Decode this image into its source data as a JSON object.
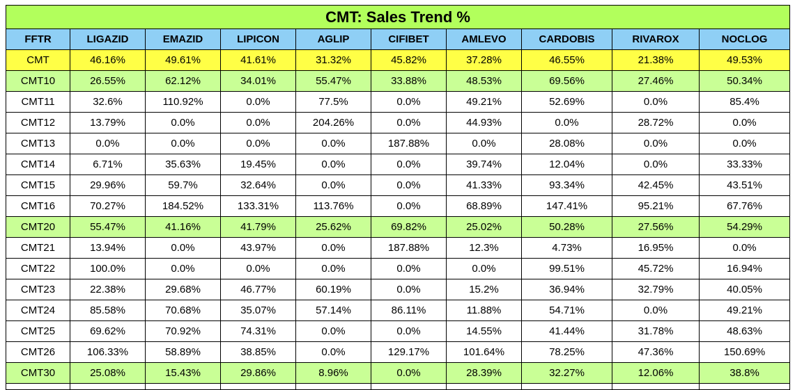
{
  "title": "CMT: Sales Trend %",
  "headers": [
    "FFTR",
    "LIGAZID",
    "EMAZID",
    "LIPICON",
    "AGLIP",
    "CIFIBET",
    "AMLEVO",
    "CARDOBIS",
    "RIVAROX",
    "NOCLOG"
  ],
  "colors": {
    "title_bg": "#b2ff5c",
    "header_bg": "#8fcff5",
    "highlight_yellow": "#ffff46",
    "highlight_green": "#c9ff96",
    "plain": "#ffffff"
  },
  "rows": [
    {
      "style": "yellow",
      "cells": [
        "CMT",
        "46.16%",
        "49.61%",
        "41.61%",
        "31.32%",
        "45.82%",
        "37.28%",
        "46.55%",
        "21.38%",
        "49.53%"
      ]
    },
    {
      "style": "green",
      "cells": [
        "CMT10",
        "26.55%",
        "62.12%",
        "34.01%",
        "55.47%",
        "33.88%",
        "48.53%",
        "69.56%",
        "27.46%",
        "50.34%"
      ]
    },
    {
      "style": "white",
      "cells": [
        "CMT11",
        "32.6%",
        "110.92%",
        "0.0%",
        "77.5%",
        "0.0%",
        "49.21%",
        "52.69%",
        "0.0%",
        "85.4%"
      ]
    },
    {
      "style": "white",
      "cells": [
        "CMT12",
        "13.79%",
        "0.0%",
        "0.0%",
        "204.26%",
        "0.0%",
        "44.93%",
        "0.0%",
        "28.72%",
        "0.0%"
      ]
    },
    {
      "style": "white",
      "cells": [
        "CMT13",
        "0.0%",
        "0.0%",
        "0.0%",
        "0.0%",
        "187.88%",
        "0.0%",
        "28.08%",
        "0.0%",
        "0.0%"
      ]
    },
    {
      "style": "white",
      "cells": [
        "CMT14",
        "6.71%",
        "35.63%",
        "19.45%",
        "0.0%",
        "0.0%",
        "39.74%",
        "12.04%",
        "0.0%",
        "33.33%"
      ]
    },
    {
      "style": "white",
      "cells": [
        "CMT15",
        "29.96%",
        "59.7%",
        "32.64%",
        "0.0%",
        "0.0%",
        "41.33%",
        "93.34%",
        "42.45%",
        "43.51%"
      ]
    },
    {
      "style": "white",
      "cells": [
        "CMT16",
        "70.27%",
        "184.52%",
        "133.31%",
        "113.76%",
        "0.0%",
        "68.89%",
        "147.41%",
        "95.21%",
        "67.76%"
      ]
    },
    {
      "style": "green",
      "cells": [
        "CMT20",
        "55.47%",
        "41.16%",
        "41.79%",
        "25.62%",
        "69.82%",
        "25.02%",
        "50.28%",
        "27.56%",
        "54.29%"
      ]
    },
    {
      "style": "white",
      "cells": [
        "CMT21",
        "13.94%",
        "0.0%",
        "43.97%",
        "0.0%",
        "187.88%",
        "12.3%",
        "4.73%",
        "16.95%",
        "0.0%"
      ]
    },
    {
      "style": "white",
      "cells": [
        "CMT22",
        "100.0%",
        "0.0%",
        "0.0%",
        "0.0%",
        "0.0%",
        "0.0%",
        "99.51%",
        "45.72%",
        "16.94%"
      ]
    },
    {
      "style": "white",
      "cells": [
        "CMT23",
        "22.38%",
        "29.68%",
        "46.77%",
        "60.19%",
        "0.0%",
        "15.2%",
        "36.94%",
        "32.79%",
        "40.05%"
      ]
    },
    {
      "style": "white",
      "cells": [
        "CMT24",
        "85.58%",
        "70.68%",
        "35.07%",
        "57.14%",
        "86.11%",
        "11.88%",
        "54.71%",
        "0.0%",
        "49.21%"
      ]
    },
    {
      "style": "white",
      "cells": [
        "CMT25",
        "69.62%",
        "70.92%",
        "74.31%",
        "0.0%",
        "0.0%",
        "14.55%",
        "41.44%",
        "31.78%",
        "48.63%"
      ]
    },
    {
      "style": "white",
      "cells": [
        "CMT26",
        "106.33%",
        "58.89%",
        "38.85%",
        "0.0%",
        "129.17%",
        "101.64%",
        "78.25%",
        "47.36%",
        "150.69%"
      ]
    },
    {
      "style": "green",
      "cells": [
        "CMT30",
        "25.08%",
        "15.43%",
        "29.86%",
        "8.96%",
        "0.0%",
        "28.39%",
        "32.27%",
        "12.06%",
        "38.8%"
      ]
    }
  ]
}
